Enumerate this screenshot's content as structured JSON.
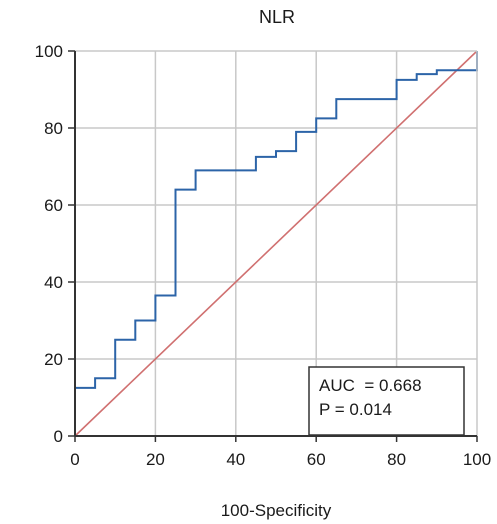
{
  "chart_data": {
    "type": "line",
    "title": "NLR",
    "xlabel": "100-Specificity",
    "ylabel": "",
    "xlim": [
      0,
      100
    ],
    "ylim": [
      0,
      100
    ],
    "x_ticks": [
      "0",
      "20",
      "40",
      "60",
      "80",
      "100"
    ],
    "y_ticks": [
      "0",
      "20",
      "40",
      "60",
      "80",
      "100"
    ],
    "grid": true,
    "series": [
      {
        "kind": "step",
        "color": "#2c64a8",
        "points": [
          [
            0,
            0
          ],
          [
            0,
            12.5
          ],
          [
            5,
            12.5
          ],
          [
            5,
            15
          ],
          [
            10,
            15
          ],
          [
            10,
            25
          ],
          [
            15,
            25
          ],
          [
            15,
            30
          ],
          [
            20,
            30
          ],
          [
            20,
            36.5
          ],
          [
            25,
            36.5
          ],
          [
            25,
            64
          ],
          [
            30,
            64
          ],
          [
            30,
            69
          ],
          [
            45,
            69
          ],
          [
            45,
            72.5
          ],
          [
            50,
            72.5
          ],
          [
            50,
            74
          ],
          [
            55,
            74
          ],
          [
            55,
            79
          ],
          [
            60,
            79
          ],
          [
            60,
            82.5
          ],
          [
            65,
            82.5
          ],
          [
            65,
            87.5
          ],
          [
            80,
            87.5
          ],
          [
            80,
            92.5
          ],
          [
            85,
            92.5
          ],
          [
            85,
            94
          ],
          [
            90,
            94
          ],
          [
            90,
            95
          ],
          [
            100,
            95
          ],
          [
            100,
            100
          ]
        ]
      },
      {
        "kind": "reference",
        "color": "#d07070",
        "points": [
          [
            0,
            0
          ],
          [
            100,
            100
          ]
        ]
      }
    ],
    "annotation": {
      "lines": [
        "AUC  = 0.668",
        "P = 0.014"
      ],
      "placement": "bottom-right"
    }
  }
}
